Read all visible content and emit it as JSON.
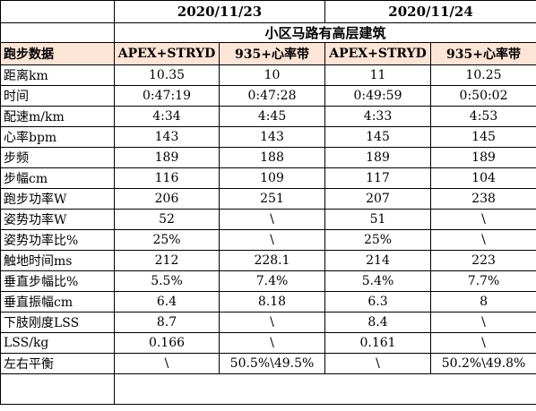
{
  "dates": [
    "2020/11/23",
    "2020/11/24"
  ],
  "venue": "小区马路有高层建筑",
  "corner_label": "跑步数据",
  "devices": [
    "APEX+STRYD",
    "935+心率带",
    "APEX+STRYD",
    "935+心率带"
  ],
  "rows": [
    {
      "label": "距离km",
      "values": [
        "10.35",
        "10",
        "11",
        "10.25"
      ]
    },
    {
      "label": "时间",
      "values": [
        "0:47:19",
        "0:47:28",
        "0:49:59",
        "0:50:02"
      ]
    },
    {
      "label": "配速m/km",
      "values": [
        "4:34",
        "4:45",
        "4:33",
        "4:53"
      ]
    },
    {
      "label": "心率bpm",
      "values": [
        "143",
        "143",
        "145",
        "145"
      ]
    },
    {
      "label": "步频",
      "values": [
        "189",
        "188",
        "189",
        "189"
      ]
    },
    {
      "label": "步幅cm",
      "values": [
        "116",
        "109",
        "117",
        "104"
      ]
    },
    {
      "label": "跑步功率W",
      "values": [
        "206",
        "251",
        "207",
        "238"
      ]
    },
    {
      "label": "姿势功率W",
      "values": [
        "52",
        "\\",
        "51",
        "\\"
      ]
    },
    {
      "label": "姿势功率比%",
      "values": [
        "25%",
        "\\",
        "25%",
        "\\"
      ]
    },
    {
      "label": "触地时间ms",
      "values": [
        "212",
        "228.1",
        "214",
        "223"
      ]
    },
    {
      "label": "垂直步幅比%",
      "values": [
        "5.5%",
        "7.4%",
        "5.4%",
        "7.7%"
      ]
    },
    {
      "label": "垂直振幅cm",
      "values": [
        "6.4",
        "8.18",
        "6.3",
        "8"
      ]
    },
    {
      "label": "下肢刚度LSS",
      "values": [
        "8.7",
        "\\",
        "8.4",
        "\\"
      ]
    },
    {
      "label": "LSS/kg",
      "values": [
        "0.166",
        "\\",
        "0.161",
        "\\"
      ]
    },
    {
      "label": "左右平衡",
      "values": [
        "\\",
        "50.5%\\49.5%",
        "\\",
        "50.2%\\49.8%"
      ]
    }
  ]
}
